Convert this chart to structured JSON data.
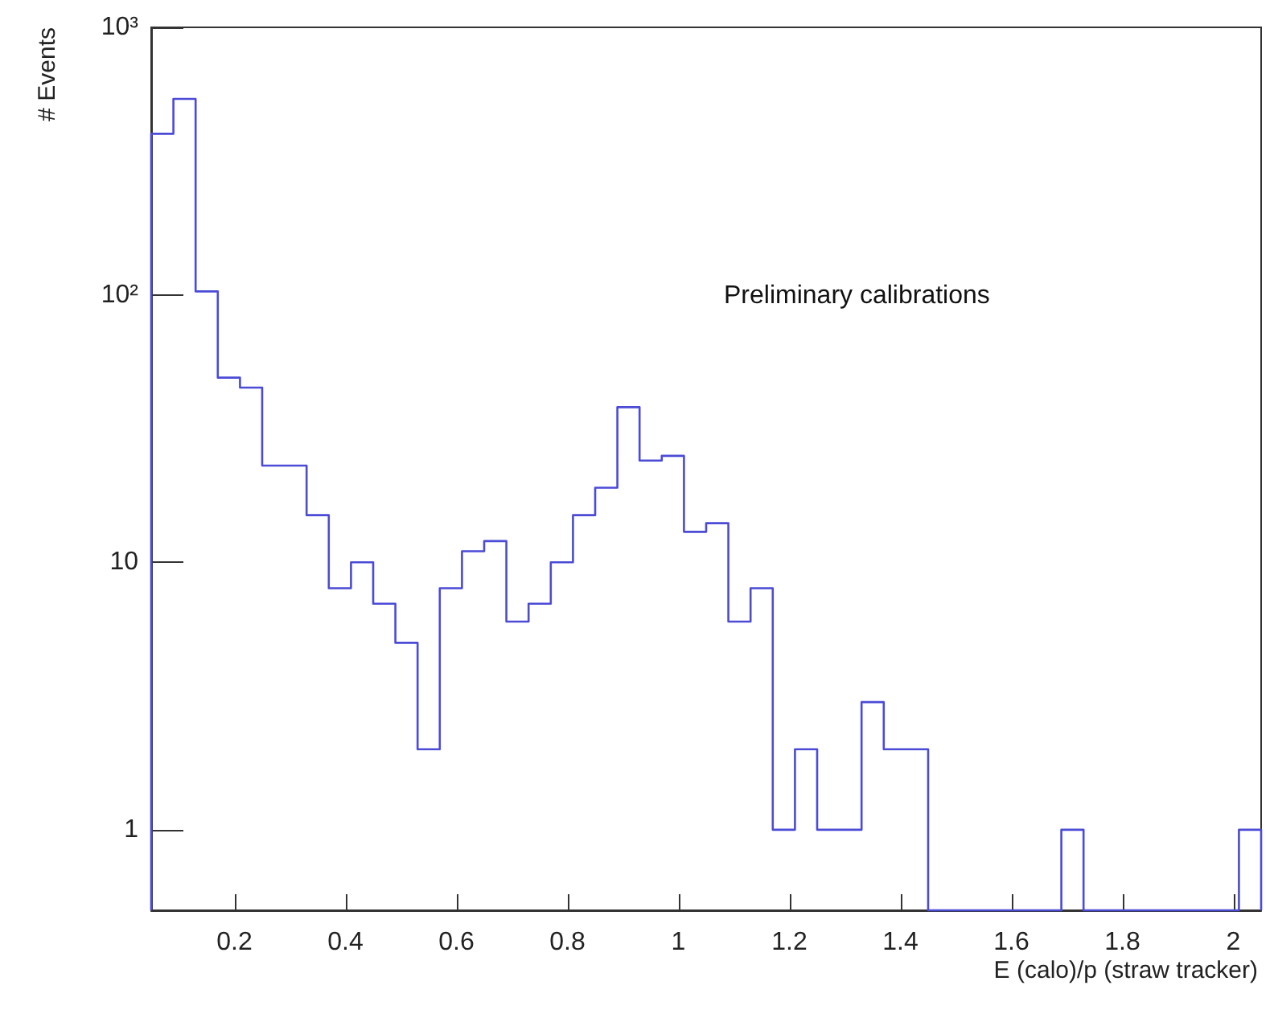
{
  "chart_data": {
    "type": "histogram",
    "xlabel": "E (calo)/p (straw tracker)",
    "ylabel": "# Events",
    "annotations": [
      "Preliminary calibrations"
    ],
    "bins": [
      0.05,
      0.09,
      0.13,
      0.17,
      0.21,
      0.25,
      0.29,
      0.33,
      0.37,
      0.41,
      0.45,
      0.49,
      0.53,
      0.57,
      0.61,
      0.65,
      0.69,
      0.73,
      0.77,
      0.81,
      0.85,
      0.89,
      0.93,
      0.97,
      1.01,
      1.05,
      1.09,
      1.13,
      1.17,
      1.21,
      1.25,
      1.29,
      1.33,
      1.37,
      1.41,
      1.45,
      1.49,
      1.53,
      1.57,
      1.61,
      1.65,
      1.69,
      1.73,
      1.77,
      1.81,
      1.85,
      1.89,
      1.93,
      1.97,
      2.01,
      2.05
    ],
    "values": [
      400,
      540,
      103,
      49,
      45,
      23,
      23,
      15,
      8,
      10,
      7,
      5,
      2,
      8,
      11,
      12,
      6,
      7,
      10,
      15,
      19,
      38,
      24,
      25,
      13,
      14,
      6,
      8,
      1,
      2,
      1,
      1,
      3,
      2,
      2,
      null,
      null,
      null,
      null,
      null,
      null,
      1,
      null,
      null,
      null,
      null,
      null,
      null,
      null,
      1
    ],
    "color": "#4b4bd6",
    "log": "y",
    "xlim": [
      0.05,
      2.05
    ],
    "xticks": [
      0.2,
      0.4,
      0.6,
      0.8,
      1,
      1.2,
      1.4,
      1.6,
      1.8,
      2
    ],
    "ylim": [
      0.5,
      1000
    ],
    "yticks": [
      1,
      10,
      {
        "value": 100,
        "label": "10²"
      },
      {
        "value": 1000,
        "label": "10³"
      }
    ],
    "grid": false
  }
}
